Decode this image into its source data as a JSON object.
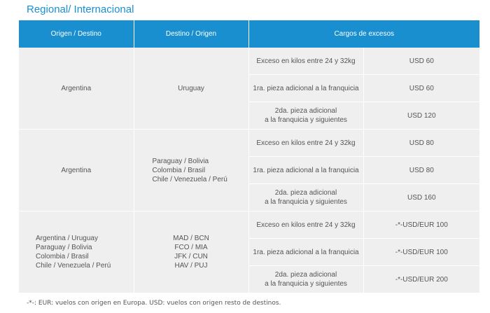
{
  "section_title": "Regional/ Internacional",
  "table": {
    "headers": [
      "Origen / Destino",
      "Destino / Origen",
      "Cargos de excesos"
    ],
    "groups": [
      {
        "origin": [
          "Argentina"
        ],
        "destination": [
          "Uruguay"
        ],
        "rows": [
          {
            "concept": [
              "Exceso en kilos entre 24 y 32kg"
            ],
            "charge": "USD 60"
          },
          {
            "concept": [
              "1ra. pieza adicional a la franquicia"
            ],
            "charge": "USD 60"
          },
          {
            "concept": [
              "2da. pieza adicional",
              "a la franquicia y siguientes"
            ],
            "charge": "USD 120"
          }
        ]
      },
      {
        "origin": [
          "Argentina"
        ],
        "destination": [
          "Paraguay / Bolivia",
          "Colombia / Brasil",
          "Chile / Venezuela / Perú"
        ],
        "rows": [
          {
            "concept": [
              "Exceso en kilos entre 24 y 32kg"
            ],
            "charge": "USD 80"
          },
          {
            "concept": [
              "1ra. pieza adicional a la franquicia"
            ],
            "charge": "USD 80"
          },
          {
            "concept": [
              "2da. pieza adicional",
              "a la franquicia y siguientes"
            ],
            "charge": "USD 160"
          }
        ]
      },
      {
        "origin": [
          "Argentina / Uruguay",
          "Paraguay / Bolivia",
          "Colombia / Brasil",
          "Chile /  Venezuela / Perú"
        ],
        "destination": [
          "MAD / BCN",
          "FCO / MIA",
          "JFK / CUN",
          "HAV / PUJ"
        ],
        "rows": [
          {
            "concept": [
              "Exceso en kilos entre 24 y 32kg"
            ],
            "charge": "-*-USD/EUR 100"
          },
          {
            "concept": [
              "1ra. pieza adicional a la franquicia"
            ],
            "charge": "-*-USD/EUR 100"
          },
          {
            "concept": [
              "2da. pieza adicional",
              "a la franquicia y siguientes"
            ],
            "charge": "-*-USD/EUR 200"
          }
        ]
      }
    ]
  },
  "footnote": "-*-: EUR: vuelos con origen en Europa. USD: vuelos con origen resto de destinos."
}
